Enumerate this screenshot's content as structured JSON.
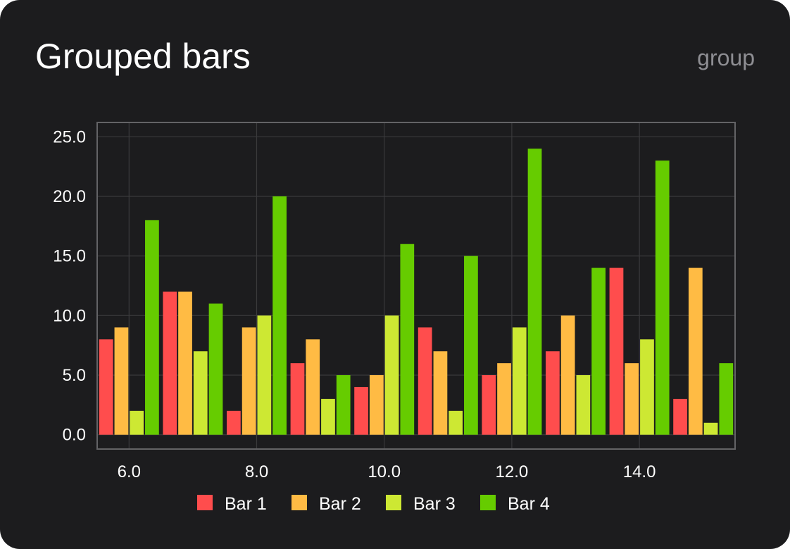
{
  "header": {
    "title": "Grouped bars",
    "tag": "group"
  },
  "colors": {
    "background": "#1c1c1e",
    "grid": "#3a3a3c",
    "frame": "#636366",
    "text": "#ffffff",
    "muted": "#8e8e93"
  },
  "chart_data": {
    "type": "bar",
    "grouped": true,
    "x": [
      6.0,
      7.0,
      8.0,
      9.0,
      10.0,
      11.0,
      12.0,
      13.0,
      14.0,
      15.0
    ],
    "x_ticks": [
      "6.0",
      "8.0",
      "10.0",
      "12.0",
      "14.0"
    ],
    "x_tick_values": [
      6,
      8,
      10,
      12,
      14
    ],
    "y_ticks": [
      "0.0",
      "5.0",
      "10.0",
      "15.0",
      "20.0",
      "25.0"
    ],
    "y_tick_values": [
      0,
      5,
      10,
      15,
      20,
      25
    ],
    "xlim": [
      5.5,
      15.5
    ],
    "ylim": [
      -1.2,
      26.2
    ],
    "grid": true,
    "legend_position": "bottom-center",
    "series": [
      {
        "name": "Bar 1",
        "color": "#ff4d4d",
        "values": [
          8,
          12,
          2,
          6,
          4,
          9,
          5,
          7,
          14,
          3
        ]
      },
      {
        "name": "Bar 2",
        "color": "#ffbb44",
        "values": [
          9,
          12,
          9,
          8,
          5,
          7,
          6,
          10,
          6,
          14
        ]
      },
      {
        "name": "Bar 3",
        "color": "#cde833",
        "values": [
          2,
          7,
          10,
          3,
          10,
          2,
          9,
          5,
          8,
          1
        ]
      },
      {
        "name": "Bar 4",
        "color": "#66cc00",
        "values": [
          18,
          11,
          20,
          5,
          16,
          15,
          24,
          14,
          23,
          6
        ]
      }
    ]
  }
}
